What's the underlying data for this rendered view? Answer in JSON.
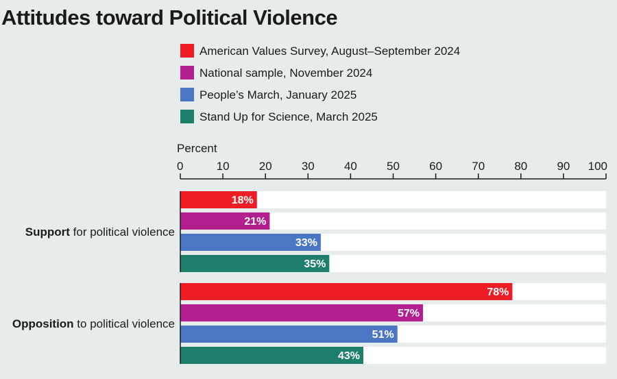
{
  "chart_data": {
    "type": "bar",
    "orientation": "horizontal",
    "title": "Attitudes toward Political Violence",
    "xlabel": "Percent",
    "xlim": [
      0,
      100
    ],
    "ticks": [
      0,
      10,
      20,
      30,
      40,
      50,
      60,
      70,
      80,
      90,
      100
    ],
    "value_suffix": "%",
    "categories": [
      {
        "bold": "Support",
        "rest": " for political violence"
      },
      {
        "bold": "Opposition",
        "rest": " to political violence"
      }
    ],
    "series": [
      {
        "name": "American Values Survey, August–September 2024",
        "color": "#ee1c25",
        "values": [
          18,
          78
        ]
      },
      {
        "name": "National sample, November 2024",
        "color": "#b31f8f",
        "values": [
          21,
          57
        ]
      },
      {
        "name": "People’s March, January 2025",
        "color": "#4a76c3",
        "values": [
          33,
          51
        ]
      },
      {
        "name": "Stand Up for Science, March 2025",
        "color": "#1e7f6a",
        "values": [
          35,
          43
        ]
      }
    ]
  }
}
